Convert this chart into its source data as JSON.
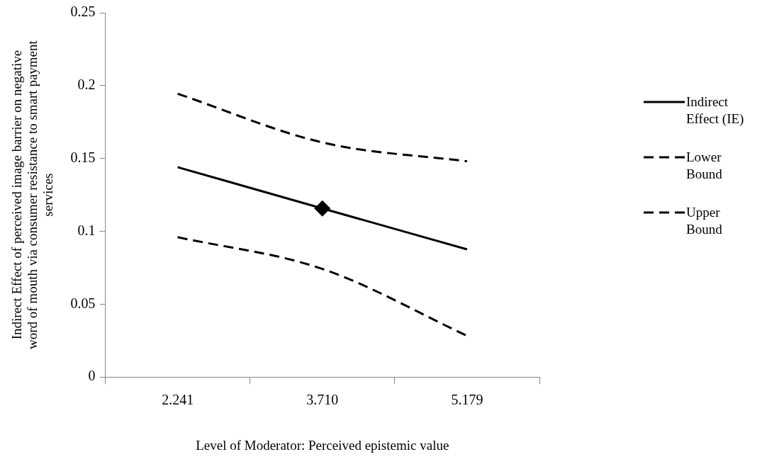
{
  "chart_data": {
    "type": "line",
    "xlabel": "Level of Moderator: Perceived epistemic value",
    "ylabel": "Indirect Effect of perceived image barrier on negative word of mouth via consumer resistance to smart payment services",
    "categories": [
      "2.241",
      "3.710",
      "5.179"
    ],
    "ylim": [
      0,
      0.25
    ],
    "yticks": [
      0,
      0.05,
      0.1,
      0.15,
      0.2,
      0.25
    ],
    "grid": false,
    "legend": "right",
    "marker": "none",
    "series": [
      {
        "name": "Indirect Effect (IE)",
        "color": "#000000",
        "line_style": "solid",
        "values": [
          0.144,
          0.1157,
          0.0876
        ]
      },
      {
        "name": "Lower Bound",
        "color": "#000000",
        "line_style": "dashed",
        "values": [
          0.096,
          0.0742,
          0.0283
        ]
      },
      {
        "name": "Upper Bound",
        "color": "#000000",
        "line_style": "dashed",
        "values": [
          0.1944,
          0.161,
          0.148
        ]
      },
      {
        "type": "scatter",
        "color": "#000000",
        "marker": "diamond",
        "x": [
          "3.710"
        ],
        "values": [
          0.1157
        ]
      }
    ]
  }
}
